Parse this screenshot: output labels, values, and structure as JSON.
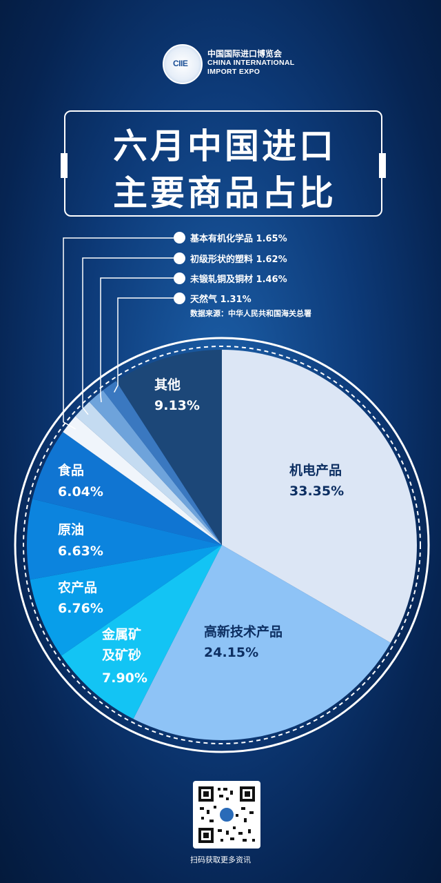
{
  "header": {
    "logo_text": "CIIE",
    "org_cn": "中国国际进口博览会",
    "org_en_line1": "CHINA INTERNATIONAL",
    "org_en_line2": "IMPORT EXPO"
  },
  "title": {
    "line1": "六月中国进口",
    "line2": "主要商品占比"
  },
  "callouts": [
    {
      "label": "基本有机化学品 1.65%"
    },
    {
      "label": "初级形状的塑料 1.62%"
    },
    {
      "label": "未锻轧铜及铜材 1.46%"
    },
    {
      "label": "天然气 1.31%"
    }
  ],
  "source": "数据来源：中华人民共和国海关总署",
  "qr_caption": "扫码获取更多资讯",
  "chart_data": {
    "type": "pie",
    "title": "六月中国进口主要商品占比",
    "slices": [
      {
        "label": "机电产品",
        "value": 33.35,
        "display": "33.35%",
        "color": "#dce6f5"
      },
      {
        "label": "高新技术产品",
        "value": 24.15,
        "display": "24.15%",
        "color": "#8ec3f6"
      },
      {
        "label": "金属矿及矿砂",
        "value": 7.9,
        "display": "7.90%",
        "color": "#13c4f4"
      },
      {
        "label": "农产品",
        "value": 6.76,
        "display": "6.76%",
        "color": "#089eea"
      },
      {
        "label": "原油",
        "value": 6.63,
        "display": "6.63%",
        "color": "#0c84de"
      },
      {
        "label": "食品",
        "value": 6.04,
        "display": "6.04%",
        "color": "#1075d2"
      },
      {
        "label": "基本有机化学品",
        "value": 1.65,
        "display": "1.65%",
        "color": "#f0f5fb"
      },
      {
        "label": "初级形状的塑料",
        "value": 1.62,
        "display": "1.62%",
        "color": "#c4dbf1"
      },
      {
        "label": "未锻轧铜及铜材",
        "value": 1.46,
        "display": "1.46%",
        "color": "#6ea3db"
      },
      {
        "label": "天然气",
        "value": 1.31,
        "display": "1.31%",
        "color": "#3a78c0"
      },
      {
        "label": "其他",
        "value": 9.13,
        "display": "9.13%",
        "color": "#1c4778"
      }
    ]
  }
}
